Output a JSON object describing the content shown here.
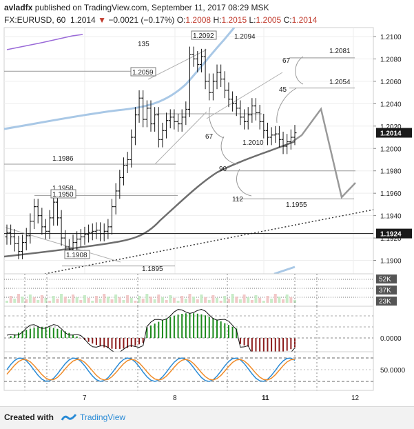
{
  "header": {
    "author": "avladfx",
    "published_text": " published on TradingView.com, September 11, 2017 08:29 MSK",
    "symbol": "FX:EURUSD, 60",
    "price": "1.2014",
    "change": "−0.0021 (−0.17%)",
    "open_label": "O:",
    "open": "1.2008",
    "high_label": "H:",
    "high": "1.2015",
    "low_label": "L:",
    "low": "1.2005",
    "close_label": "C:",
    "close": "1.2014"
  },
  "footer": {
    "created_with": "Created with",
    "brand": "TradingView"
  },
  "colors": {
    "accent": "#2a8bd6",
    "down": "#c0392b",
    "up": "#1a8a1a"
  },
  "chart_data": {
    "type": "candlestick",
    "price_axis": {
      "ticks": [
        "1.2100",
        "1.2080",
        "1.2060",
        "1.2040",
        "1.2020",
        "1.2000",
        "1.1980",
        "1.1960",
        "1.1940",
        "1.1920",
        "1.1900"
      ],
      "ylim": [
        1.1888,
        1.2108
      ],
      "current_price": "1.2014",
      "marked_price": "1.1924"
    },
    "time_axis": {
      "ticks": [
        "7",
        "8",
        "11",
        "12"
      ]
    },
    "price_series": [
      1.1925,
      1.1921,
      1.1915,
      1.1908,
      1.1916,
      1.1922,
      1.1935,
      1.1948,
      1.194,
      1.193,
      1.1926,
      1.1938,
      1.1952,
      1.1938,
      1.192,
      1.1912,
      1.191,
      1.1916,
      1.1919,
      1.1921,
      1.1923,
      1.1925,
      1.1926,
      1.1927,
      1.1924,
      1.1926,
      1.193,
      1.1948,
      1.1962,
      1.1974,
      1.1985,
      1.199,
      1.201,
      1.203,
      1.2045,
      1.2026,
      1.2036,
      1.2022,
      1.203,
      1.2008,
      1.2016,
      1.2025,
      1.2028,
      1.2024,
      1.2022,
      1.2028,
      1.2035,
      1.2084,
      1.208,
      1.2075,
      1.2082,
      1.206,
      1.205,
      1.206,
      1.2068,
      1.2062,
      1.2052,
      1.2044,
      1.204,
      1.2036,
      1.2028,
      1.2024,
      1.203,
      1.2038,
      1.2032,
      1.2024,
      1.2016,
      1.201,
      1.2012,
      1.2013,
      1.2008,
      1.2002,
      1.2006,
      1.201,
      1.2014
    ],
    "price_labels": [
      "1.2094",
      "1.2092",
      "1.2081",
      "1.2059",
      "1.2054",
      "1.2010",
      "1.1986",
      "1.1958",
      "1.1950",
      "1.1955",
      "1.1908",
      "1.1895"
    ],
    "count_labels": [
      "135",
      "67",
      "45",
      "67",
      "90",
      "112"
    ],
    "volume_axis": {
      "ticks": [
        "52K",
        "37K",
        "23K"
      ]
    },
    "oscillator_axis": {
      "ticks": [
        "0.0000"
      ]
    },
    "stochastic_axis": {
      "ticks": [
        "50.0000"
      ]
    }
  }
}
